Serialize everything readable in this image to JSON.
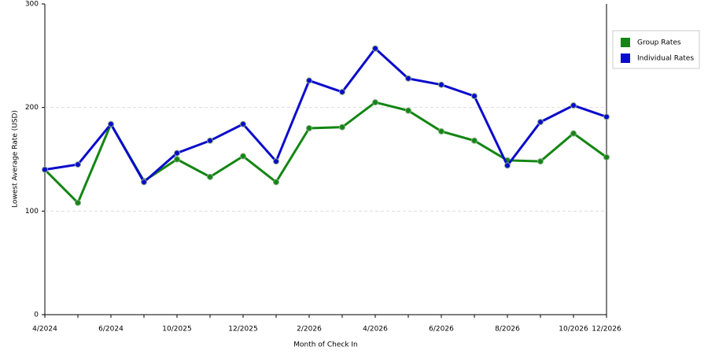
{
  "chart_data": {
    "type": "line",
    "x_label": "Month of Check In",
    "y_label": "Lowest Average Rate (USD)",
    "categories": [
      "4/2024",
      null,
      "6/2024",
      null,
      "10/2025",
      null,
      "12/2025",
      null,
      "2/2026",
      null,
      "4/2026",
      null,
      "6/2026",
      null,
      "8/2026",
      null,
      "10/2026",
      "12/2026"
    ],
    "series": [
      {
        "name": "Group Rates",
        "color": "#138613",
        "values": [
          140,
          108,
          184,
          129,
          150,
          133,
          153,
          128,
          180,
          181,
          205,
          197,
          177,
          168,
          149,
          148,
          175,
          152
        ]
      },
      {
        "name": "Individual Rates",
        "color": "#0b0bcc",
        "values": [
          140,
          145,
          184,
          128,
          156,
          168,
          184,
          148,
          226,
          215,
          257,
          228,
          222,
          211,
          144,
          186,
          202,
          191
        ]
      }
    ],
    "ylim": [
      0,
      300
    ],
    "yticks": [
      0,
      100,
      200,
      300
    ],
    "grid": true
  }
}
